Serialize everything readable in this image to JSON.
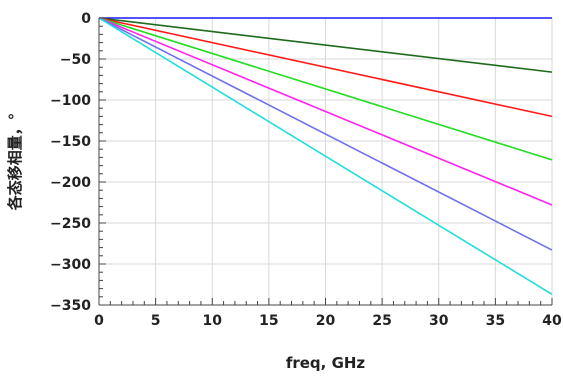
{
  "chart_data": {
    "type": "line",
    "xlabel": "freq, GHz",
    "ylabel": "各态移相量，°",
    "xlim": [
      0,
      40
    ],
    "ylim": [
      -350,
      0
    ],
    "xticks": [
      0,
      5,
      10,
      15,
      20,
      25,
      30,
      35,
      40
    ],
    "yticks": [
      0,
      -50,
      -100,
      -150,
      -200,
      -250,
      -300,
      -350
    ],
    "grid": true,
    "series": [
      {
        "color": "#1a1aff",
        "x": [
          0,
          40
        ],
        "y": [
          0,
          0
        ]
      },
      {
        "color": "#1e6b1e",
        "x": [
          0,
          40
        ],
        "y": [
          0,
          -66
        ]
      },
      {
        "color": "#ff1a1a",
        "x": [
          0,
          40
        ],
        "y": [
          0,
          -120
        ]
      },
      {
        "color": "#22dd22",
        "x": [
          0,
          40
        ],
        "y": [
          0,
          -173
        ]
      },
      {
        "color": "#ff22ee",
        "x": [
          0,
          40
        ],
        "y": [
          0,
          -228
        ]
      },
      {
        "color": "#7070ee",
        "x": [
          0,
          40
        ],
        "y": [
          0,
          -283
        ]
      },
      {
        "color": "#22dddd",
        "x": [
          0,
          40
        ],
        "y": [
          0,
          -337
        ]
      }
    ]
  }
}
